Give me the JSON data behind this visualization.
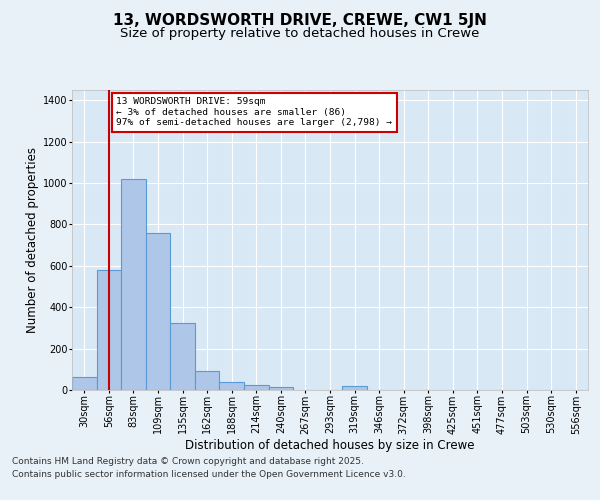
{
  "title_line1": "13, WORDSWORTH DRIVE, CREWE, CW1 5JN",
  "title_line2": "Size of property relative to detached houses in Crewe",
  "xlabel": "Distribution of detached houses by size in Crewe",
  "ylabel": "Number of detached properties",
  "bar_labels": [
    "30sqm",
    "56sqm",
    "83sqm",
    "109sqm",
    "135sqm",
    "162sqm",
    "188sqm",
    "214sqm",
    "240sqm",
    "267sqm",
    "293sqm",
    "319sqm",
    "346sqm",
    "372sqm",
    "398sqm",
    "425sqm",
    "451sqm",
    "477sqm",
    "503sqm",
    "530sqm",
    "556sqm"
  ],
  "bar_values": [
    65,
    580,
    1020,
    760,
    325,
    90,
    38,
    25,
    15,
    0,
    0,
    18,
    0,
    0,
    0,
    0,
    0,
    0,
    0,
    0,
    0
  ],
  "bar_color": "#aec6e8",
  "bar_edge_color": "#5b9bd5",
  "bar_edge_width": 0.8,
  "vline_x": 1,
  "vline_color": "#cc0000",
  "annotation_box_text": "13 WORDSWORTH DRIVE: 59sqm\n← 3% of detached houses are smaller (86)\n97% of semi-detached houses are larger (2,798) →",
  "ylim": [
    0,
    1450
  ],
  "yticks": [
    0,
    200,
    400,
    600,
    800,
    1000,
    1200,
    1400
  ],
  "background_color": "#e8f0f8",
  "plot_background_color": "#d8e8f5",
  "grid_color": "#ffffff",
  "footnote1": "Contains HM Land Registry data © Crown copyright and database right 2025.",
  "footnote2": "Contains public sector information licensed under the Open Government Licence v3.0.",
  "title_fontsize": 11,
  "subtitle_fontsize": 9.5,
  "tick_fontsize": 7,
  "label_fontsize": 8.5,
  "footnote_fontsize": 6.5
}
